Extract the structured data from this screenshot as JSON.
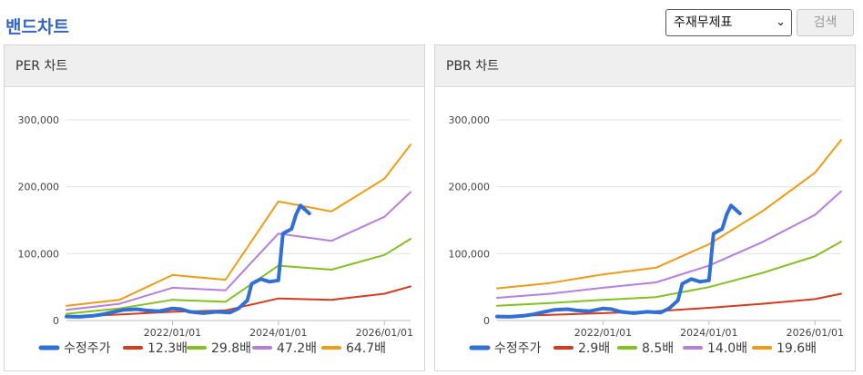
{
  "page": {
    "title": "밴드차트"
  },
  "controls": {
    "select_value": "주재무제표",
    "search_label": "검색"
  },
  "charts": [
    {
      "header": "PER 차트",
      "chart_data": {
        "type": "line",
        "yticks": [
          "300,000",
          "200,000",
          "100,000",
          "0"
        ],
        "ytick_values": [
          300000,
          200000,
          100000,
          0
        ],
        "xticks": [
          "2022/01/01",
          "2024/01/01",
          "2026/01/01"
        ],
        "xtick_values": [
          "2022-01-01",
          "2024-01-01",
          "2026-01-01"
        ],
        "xlim": [
          "2020-01-01",
          "2026-06-30"
        ],
        "ylim": [
          0,
          300000
        ],
        "grid": true,
        "legend_position": "bottom",
        "series": [
          {
            "name": "수정주가",
            "color": "#2f6fd6",
            "width": 4,
            "points": [
              [
                "2020-01-01",
                6000
              ],
              [
                "2020-04-01",
                5500
              ],
              [
                "2020-07-01",
                7000
              ],
              [
                "2020-09-01",
                9000
              ],
              [
                "2020-11-01",
                12000
              ],
              [
                "2021-02-01",
                16000
              ],
              [
                "2021-05-01",
                17000
              ],
              [
                "2021-07-01",
                15000
              ],
              [
                "2021-10-01",
                14000
              ],
              [
                "2022-01-01",
                18000
              ],
              [
                "2022-03-01",
                17000
              ],
              [
                "2022-05-01",
                13000
              ],
              [
                "2022-08-01",
                11000
              ],
              [
                "2022-11-01",
                13000
              ],
              [
                "2023-02-01",
                12000
              ],
              [
                "2023-04-01",
                18000
              ],
              [
                "2023-06-01",
                30000
              ],
              [
                "2023-07-01",
                55000
              ],
              [
                "2023-09-01",
                62000
              ],
              [
                "2023-11-01",
                58000
              ],
              [
                "2024-01-01",
                60000
              ],
              [
                "2024-02-01",
                130000
              ],
              [
                "2024-04-01",
                137000
              ],
              [
                "2024-05-01",
                158000
              ],
              [
                "2024-06-01",
                172000
              ],
              [
                "2024-08-01",
                160000
              ]
            ]
          },
          {
            "name": "12.3배",
            "color": "#d93a1a",
            "width": 2,
            "points": [
              [
                "2020-01-01",
                5500
              ],
              [
                "2021-01-01",
                9000
              ],
              [
                "2022-01-01",
                13000
              ],
              [
                "2023-01-01",
                15000
              ],
              [
                "2024-01-01",
                33000
              ],
              [
                "2025-01-01",
                31000
              ],
              [
                "2026-01-01",
                40000
              ],
              [
                "2026-06-30",
                51000
              ]
            ]
          },
          {
            "name": "29.8배",
            "color": "#7fc31c",
            "width": 2,
            "points": [
              [
                "2020-01-01",
                10000
              ],
              [
                "2021-01-01",
                18000
              ],
              [
                "2022-01-01",
                31000
              ],
              [
                "2023-01-01",
                28000
              ],
              [
                "2024-01-01",
                82000
              ],
              [
                "2025-01-01",
                76000
              ],
              [
                "2026-01-01",
                98000
              ],
              [
                "2026-06-30",
                122000
              ]
            ]
          },
          {
            "name": "47.2배",
            "color": "#b77ee0",
            "width": 2,
            "points": [
              [
                "2020-01-01",
                16000
              ],
              [
                "2021-01-01",
                25000
              ],
              [
                "2022-01-01",
                49000
              ],
              [
                "2023-01-01",
                45000
              ],
              [
                "2024-01-01",
                130000
              ],
              [
                "2025-01-01",
                119000
              ],
              [
                "2026-01-01",
                155000
              ],
              [
                "2026-06-30",
                192000
              ]
            ]
          },
          {
            "name": "64.7배",
            "color": "#f39a12",
            "width": 2,
            "points": [
              [
                "2020-01-01",
                22000
              ],
              [
                "2021-01-01",
                31000
              ],
              [
                "2022-01-01",
                68000
              ],
              [
                "2023-01-01",
                61000
              ],
              [
                "2024-01-01",
                178000
              ],
              [
                "2025-01-01",
                163000
              ],
              [
                "2026-01-01",
                212000
              ],
              [
                "2026-06-30",
                263000
              ]
            ]
          }
        ]
      }
    },
    {
      "header": "PBR 차트",
      "chart_data": {
        "type": "line",
        "yticks": [
          "300,000",
          "200,000",
          "100,000",
          "0"
        ],
        "ytick_values": [
          300000,
          200000,
          100000,
          0
        ],
        "xticks": [
          "2022/01/01",
          "2024/01/01",
          "2026/01/01"
        ],
        "xtick_values": [
          "2022-01-01",
          "2024-01-01",
          "2026-01-01"
        ],
        "xlim": [
          "2020-01-01",
          "2026-06-30"
        ],
        "ylim": [
          0,
          300000
        ],
        "grid": true,
        "legend_position": "bottom",
        "series": [
          {
            "name": "수정주가",
            "color": "#2f6fd6",
            "width": 4,
            "points": [
              [
                "2020-01-01",
                6000
              ],
              [
                "2020-04-01",
                5500
              ],
              [
                "2020-07-01",
                7000
              ],
              [
                "2020-09-01",
                9000
              ],
              [
                "2020-11-01",
                12000
              ],
              [
                "2021-02-01",
                16000
              ],
              [
                "2021-05-01",
                17000
              ],
              [
                "2021-07-01",
                15000
              ],
              [
                "2021-10-01",
                14000
              ],
              [
                "2022-01-01",
                18000
              ],
              [
                "2022-03-01",
                17000
              ],
              [
                "2022-05-01",
                13000
              ],
              [
                "2022-08-01",
                11000
              ],
              [
                "2022-11-01",
                13000
              ],
              [
                "2023-02-01",
                12000
              ],
              [
                "2023-04-01",
                18000
              ],
              [
                "2023-06-01",
                30000
              ],
              [
                "2023-07-01",
                55000
              ],
              [
                "2023-09-01",
                62000
              ],
              [
                "2023-11-01",
                58000
              ],
              [
                "2024-01-01",
                60000
              ],
              [
                "2024-02-01",
                130000
              ],
              [
                "2024-04-01",
                137000
              ],
              [
                "2024-05-01",
                158000
              ],
              [
                "2024-06-01",
                172000
              ],
              [
                "2024-08-01",
                160000
              ]
            ]
          },
          {
            "name": "2.9배",
            "color": "#d93a1a",
            "width": 2,
            "points": [
              [
                "2020-01-01",
                6000
              ],
              [
                "2021-01-01",
                8500
              ],
              [
                "2022-01-01",
                11000
              ],
              [
                "2023-01-01",
                14000
              ],
              [
                "2024-01-01",
                19000
              ],
              [
                "2025-01-01",
                25000
              ],
              [
                "2026-01-01",
                32000
              ],
              [
                "2026-06-30",
                40000
              ]
            ]
          },
          {
            "name": "8.5배",
            "color": "#7fc31c",
            "width": 2,
            "points": [
              [
                "2020-01-01",
                22000
              ],
              [
                "2021-01-01",
                26000
              ],
              [
                "2022-01-01",
                31000
              ],
              [
                "2023-01-01",
                35000
              ],
              [
                "2024-01-01",
                50000
              ],
              [
                "2025-01-01",
                71000
              ],
              [
                "2026-01-01",
                96000
              ],
              [
                "2026-06-30",
                118000
              ]
            ]
          },
          {
            "name": "14.0배",
            "color": "#b77ee0",
            "width": 2,
            "points": [
              [
                "2020-01-01",
                34000
              ],
              [
                "2021-01-01",
                40000
              ],
              [
                "2022-01-01",
                49000
              ],
              [
                "2023-01-01",
                57000
              ],
              [
                "2024-01-01",
                82000
              ],
              [
                "2025-01-01",
                117000
              ],
              [
                "2026-01-01",
                158000
              ],
              [
                "2026-06-30",
                193000
              ]
            ]
          },
          {
            "name": "19.6배",
            "color": "#f39a12",
            "width": 2,
            "points": [
              [
                "2020-01-01",
                48000
              ],
              [
                "2021-01-01",
                56000
              ],
              [
                "2022-01-01",
                69000
              ],
              [
                "2023-01-01",
                79000
              ],
              [
                "2024-01-01",
                114000
              ],
              [
                "2025-01-01",
                163000
              ],
              [
                "2026-01-01",
                221000
              ],
              [
                "2026-06-30",
                270000
              ]
            ]
          }
        ]
      }
    }
  ]
}
